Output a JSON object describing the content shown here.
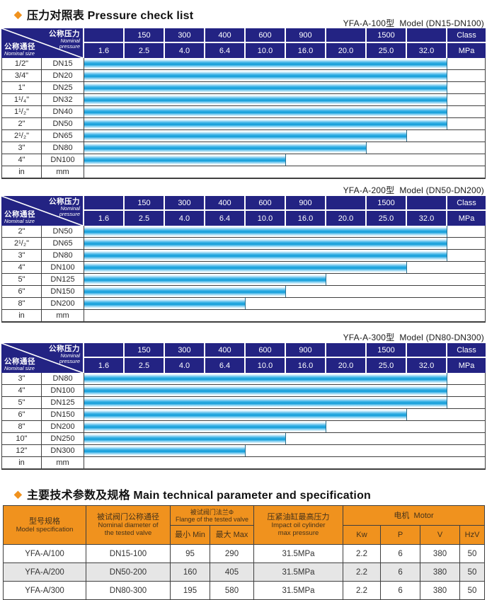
{
  "titles": {
    "pressure_section": "压力对照表 Pressure check list",
    "spec_section": "主要技术参数及规格 Main technical parameter and specification"
  },
  "pressure_header": {
    "diag": {
      "top_cn": "公称压力",
      "top_en1": "Nominal",
      "top_en2": "pressure",
      "bottom_cn": "公称通径",
      "bottom_en": "Nominal size"
    },
    "class_row": [
      "",
      "150",
      "300",
      "400",
      "600",
      "900",
      "",
      "1500",
      ""
    ],
    "class_unit": "Class",
    "mpa_row": [
      "1.6",
      "2.5",
      "4.0",
      "6.4",
      "10.0",
      "16.0",
      "20.0",
      "25.0",
      "32.0"
    ],
    "mpa_unit": "MPa"
  },
  "pressure_tables": [
    {
      "model_label": "YFA-A-100型  Model (DN15-DN100)",
      "rows": [
        {
          "inch": "1/2\"",
          "dn": "DN15",
          "cols": 9,
          "max_mpa": "32.0"
        },
        {
          "inch": "3/4\"",
          "dn": "DN20",
          "cols": 9,
          "max_mpa": "32.0"
        },
        {
          "inch": "1\"",
          "dn": "DN25",
          "cols": 9,
          "max_mpa": "32.0"
        },
        {
          "inch": "1¹/₄\"",
          "dn": "DN32",
          "cols": 9,
          "max_mpa": "32.0"
        },
        {
          "inch": "1¹/₂\"",
          "dn": "DN40",
          "cols": 9,
          "max_mpa": "32.0"
        },
        {
          "inch": "2\"",
          "dn": "DN50",
          "cols": 9,
          "max_mpa": "32.0"
        },
        {
          "inch": "2¹/₂\"",
          "dn": "DN65",
          "cols": 8,
          "max_mpa": "25.0"
        },
        {
          "inch": "3\"",
          "dn": "DN80",
          "cols": 7,
          "max_mpa": "20.0"
        },
        {
          "inch": "4\"",
          "dn": "DN100",
          "cols": 5,
          "max_mpa": "10.0"
        }
      ],
      "unit_row": {
        "inch": "in",
        "dn": "mm"
      }
    },
    {
      "model_label": "YFA-A-200型  Model (DN50-DN200)",
      "rows": [
        {
          "inch": "2\"",
          "dn": "DN50",
          "cols": 9,
          "max_mpa": "32.0"
        },
        {
          "inch": "2¹/₂\"",
          "dn": "DN65",
          "cols": 9,
          "max_mpa": "32.0"
        },
        {
          "inch": "3\"",
          "dn": "DN80",
          "cols": 9,
          "max_mpa": "32.0"
        },
        {
          "inch": "4\"",
          "dn": "DN100",
          "cols": 8,
          "max_mpa": "25.0"
        },
        {
          "inch": "5\"",
          "dn": "DN125",
          "cols": 6,
          "max_mpa": "16.0"
        },
        {
          "inch": "6\"",
          "dn": "DN150",
          "cols": 5,
          "max_mpa": "10.0"
        },
        {
          "inch": "8\"",
          "dn": "DN200",
          "cols": 4,
          "max_mpa": "6.4"
        }
      ],
      "unit_row": {
        "inch": "in",
        "dn": "mm"
      }
    },
    {
      "model_label": "YFA-A-300型  Model (DN80-DN300)",
      "rows": [
        {
          "inch": "3\"",
          "dn": "DN80",
          "cols": 9,
          "max_mpa": "32.0"
        },
        {
          "inch": "4\"",
          "dn": "DN100",
          "cols": 9,
          "max_mpa": "32.0"
        },
        {
          "inch": "5\"",
          "dn": "DN125",
          "cols": 9,
          "max_mpa": "32.0"
        },
        {
          "inch": "6\"",
          "dn": "DN150",
          "cols": 8,
          "max_mpa": "25.0"
        },
        {
          "inch": "8\"",
          "dn": "DN200",
          "cols": 6,
          "max_mpa": "16.0"
        },
        {
          "inch": "10\"",
          "dn": "DN250",
          "cols": 5,
          "max_mpa": "10.0"
        },
        {
          "inch": "12\"",
          "dn": "DN300",
          "cols": 4,
          "max_mpa": "6.4"
        }
      ],
      "unit_row": {
        "inch": "in",
        "dn": "mm"
      }
    }
  ],
  "spec_table": {
    "header": {
      "model_cn": "型号规格",
      "model_en": "Model specification",
      "dn_cn": "被试阀门公称通径",
      "dn_en1": "Nominal diameter of",
      "dn_en2": "the tested valve",
      "flange_cn": "被试阀门法兰Φ",
      "flange_en": "Flange of the tested valve",
      "min": "最小 Min",
      "max": "最大 Max",
      "cyl_cn": "压紧油缸最高压力",
      "cyl_en1": "Impact oil cylinder",
      "cyl_en2": "max pressure",
      "motor": "电机  Motor",
      "kw": "Kw",
      "p": "P",
      "v": "V",
      "hz": "HzV"
    },
    "rows": [
      [
        "YFA-A/100",
        "DN15-100",
        "95",
        "290",
        "31.5MPa",
        "2.2",
        "6",
        "380",
        "50"
      ],
      [
        "YFA-A/200",
        "DN50-200",
        "160",
        "405",
        "31.5MPa",
        "2.2",
        "6",
        "380",
        "50"
      ],
      [
        "YFA-A/300",
        "DN80-300",
        "195",
        "580",
        "31.5MPa",
        "2.2",
        "6",
        "380",
        "50"
      ]
    ]
  },
  "colors": {
    "navy_header": "#232383",
    "bar_cyan": "#29abe2",
    "bar_dark_stripe": "#0f97d2",
    "orange_header": "#f0921e",
    "accent_diamond": "#f0921e",
    "shaded_row": "#e6e6e6"
  }
}
